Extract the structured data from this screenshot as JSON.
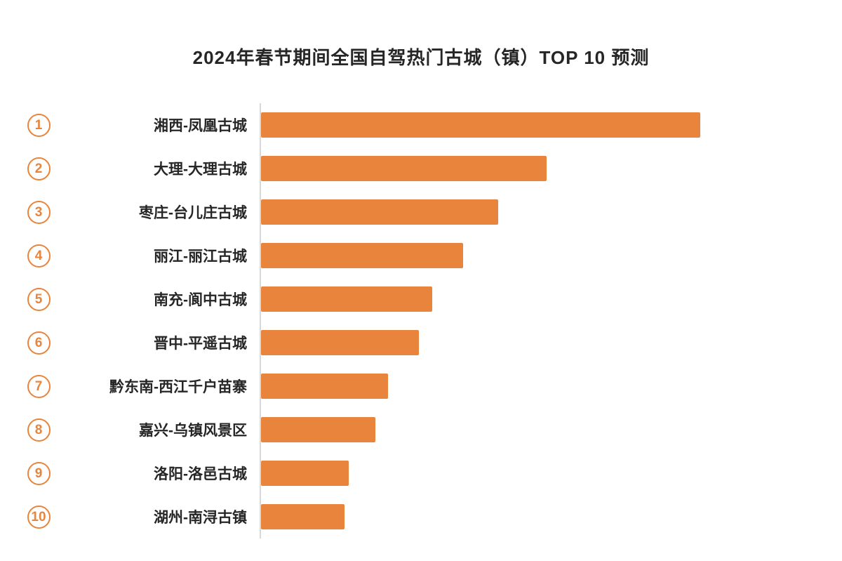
{
  "chart_data": {
    "type": "bar",
    "orientation": "horizontal",
    "title": "2024年春节期间全国自驾热门古城（镇）TOP 10 预测",
    "categories": [
      "湘西-凤凰古城",
      "大理-大理古城",
      "枣庄-台儿庄古城",
      "丽江-丽江古城",
      "南充-阆中古城",
      "晋中-平遥古城",
      "黔东南-西江千户苗寨",
      "嘉兴-乌镇风景区",
      "洛阳-洛邑古城",
      "湖州-南浔古镇"
    ],
    "ranks": [
      "1",
      "2",
      "3",
      "4",
      "5",
      "6",
      "7",
      "8",
      "9",
      "10"
    ],
    "values": [
      100,
      65,
      54,
      46,
      39,
      36,
      29,
      26,
      20,
      19
    ],
    "max_value": 100,
    "value_unit": "relative popularity index (no numeric axis shown)",
    "bar_color": "#E8843B",
    "axis_line_color": "#d9d9d9",
    "legend": "none",
    "grid": "off",
    "xlabel": "",
    "ylabel": ""
  }
}
